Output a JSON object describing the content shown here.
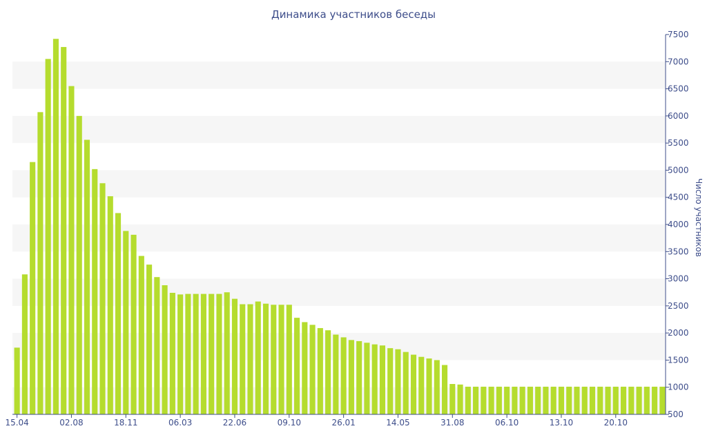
{
  "chart_data": {
    "type": "bar",
    "title": "Динамика участников беседы",
    "xlabel": "",
    "ylabel": "Число участников",
    "ylim": [
      500,
      7500
    ],
    "yticks": [
      500,
      1000,
      1500,
      2000,
      2500,
      3000,
      3500,
      4000,
      4500,
      5000,
      5500,
      6000,
      6500,
      7000,
      7500
    ],
    "y_axis_side": "right",
    "grid": "horizontal alternating bands",
    "colors": {
      "bar": "#b5dc2e",
      "axis": "#3d4d8a",
      "band": "#f6f6f6"
    },
    "xtick_labels": [
      {
        "index": 0,
        "label": "15.04"
      },
      {
        "index": 7,
        "label": "02.08"
      },
      {
        "index": 14,
        "label": "18.11"
      },
      {
        "index": 21,
        "label": "06.03"
      },
      {
        "index": 28,
        "label": "22.06"
      },
      {
        "index": 35,
        "label": "09.10"
      },
      {
        "index": 42,
        "label": "26.01"
      },
      {
        "index": 49,
        "label": "14.05"
      },
      {
        "index": 56,
        "label": "31.08"
      },
      {
        "index": 63,
        "label": "06.10"
      },
      {
        "index": 70,
        "label": "13.10"
      },
      {
        "index": 77,
        "label": "20.10"
      }
    ],
    "values": [
      1730,
      3080,
      5150,
      6070,
      7050,
      7420,
      7270,
      6550,
      6000,
      5560,
      5020,
      4760,
      4520,
      4210,
      3880,
      3810,
      3420,
      3260,
      3030,
      2880,
      2740,
      2710,
      2720,
      2720,
      2720,
      2720,
      2720,
      2750,
      2630,
      2530,
      2530,
      2580,
      2540,
      2520,
      2520,
      2520,
      2280,
      2200,
      2150,
      2090,
      2050,
      1970,
      1920,
      1870,
      1850,
      1820,
      1790,
      1770,
      1720,
      1700,
      1650,
      1600,
      1560,
      1530,
      1500,
      1410,
      1060,
      1050,
      1010,
      1010,
      1010,
      1010,
      1010,
      1010,
      1010,
      1010,
      1010,
      1010,
      1010,
      1010,
      1010,
      1010,
      1010,
      1010,
      1010,
      1010,
      1010,
      1010,
      1010,
      1010,
      1010,
      1010,
      1010,
      1010
    ]
  }
}
